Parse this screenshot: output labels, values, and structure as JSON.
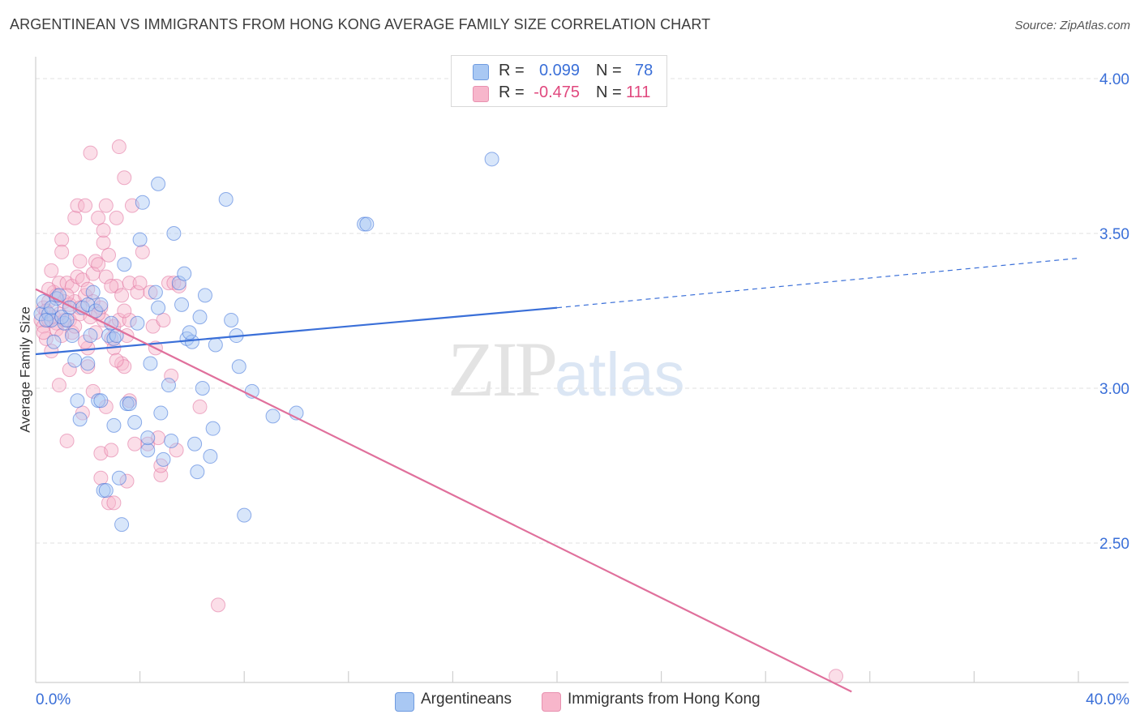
{
  "header": {
    "title": "ARGENTINEAN VS IMMIGRANTS FROM HONG KONG AVERAGE FAMILY SIZE CORRELATION CHART",
    "source": "Source: ZipAtlas.com"
  },
  "watermark": {
    "zip": "ZIP",
    "atlas": "atlas"
  },
  "stats": [
    {
      "r_label": "R =",
      "r_value": "0.099",
      "n_label": "N =",
      "n_value": "78",
      "color": "#a9c8f3"
    },
    {
      "r_label": "R =",
      "r_value": "-0.475",
      "n_label": "N =",
      "n_value": "111",
      "color": "#f7b6cb"
    }
  ],
  "legend": [
    {
      "label": "Argentineans",
      "color": "#a9c8f3"
    },
    {
      "label": "Immigrants from Hong Kong",
      "color": "#f7b6cb"
    }
  ],
  "chart_data": {
    "type": "scatter",
    "title": "ARGENTINEAN VS IMMIGRANTS FROM HONG KONG AVERAGE FAMILY SIZE CORRELATION CHART",
    "xlabel": "",
    "ylabel": "Average Family Size",
    "xlim": [
      0,
      40
    ],
    "ylim": [
      2.0,
      4.08
    ],
    "x_tick_labels": [
      "0.0%",
      "40.0%"
    ],
    "y_ticks": [
      2.5,
      3.0,
      3.5,
      4.0
    ],
    "y_tick_labels": [
      "2.50",
      "3.00",
      "3.50",
      "4.00"
    ],
    "grid": "horizontal dashed",
    "legend_position": "bottom",
    "series": [
      {
        "name": "Argentineans",
        "color": "#3a6fd8",
        "fill": "#a9c8f3",
        "trend": {
          "x": [
            0,
            20,
            40
          ],
          "y": [
            3.11,
            3.26,
            3.42
          ],
          "solid_until": 20
        },
        "points": [
          [
            0.2,
            3.24
          ],
          [
            0.3,
            3.28
          ],
          [
            0.5,
            3.24
          ],
          [
            0.6,
            3.22
          ],
          [
            0.7,
            3.15
          ],
          [
            0.8,
            3.29
          ],
          [
            0.9,
            3.3
          ],
          [
            1.1,
            3.21
          ],
          [
            1.3,
            3.26
          ],
          [
            1.4,
            3.17
          ],
          [
            1.5,
            3.09
          ],
          [
            1.6,
            2.96
          ],
          [
            1.7,
            2.9
          ],
          [
            1.8,
            3.26
          ],
          [
            2.0,
            3.08
          ],
          [
            2.0,
            3.27
          ],
          [
            2.2,
            3.31
          ],
          [
            2.3,
            3.25
          ],
          [
            2.4,
            2.96
          ],
          [
            2.5,
            3.27
          ],
          [
            2.5,
            2.96
          ],
          [
            2.6,
            2.67
          ],
          [
            2.8,
            3.17
          ],
          [
            2.9,
            3.21
          ],
          [
            3.0,
            3.16
          ],
          [
            3.0,
            2.88
          ],
          [
            3.2,
            2.71
          ],
          [
            3.3,
            2.56
          ],
          [
            3.4,
            3.4
          ],
          [
            3.5,
            2.95
          ],
          [
            3.6,
            2.95
          ],
          [
            3.8,
            2.89
          ],
          [
            3.9,
            3.21
          ],
          [
            4.0,
            3.48
          ],
          [
            4.1,
            3.6
          ],
          [
            4.3,
            2.8
          ],
          [
            4.3,
            2.84
          ],
          [
            4.4,
            3.08
          ],
          [
            4.6,
            3.31
          ],
          [
            4.7,
            3.26
          ],
          [
            4.7,
            3.66
          ],
          [
            4.8,
            2.92
          ],
          [
            4.9,
            2.77
          ],
          [
            5.1,
            3.01
          ],
          [
            5.2,
            2.83
          ],
          [
            5.3,
            3.5
          ],
          [
            5.5,
            3.34
          ],
          [
            5.6,
            3.27
          ],
          [
            5.7,
            3.37
          ],
          [
            5.8,
            3.16
          ],
          [
            6.0,
            3.15
          ],
          [
            6.1,
            2.82
          ],
          [
            6.2,
            2.73
          ],
          [
            6.3,
            3.23
          ],
          [
            6.4,
            3.0
          ],
          [
            6.5,
            3.3
          ],
          [
            6.7,
            2.78
          ],
          [
            6.8,
            2.87
          ],
          [
            6.9,
            3.14
          ],
          [
            7.3,
            3.61
          ],
          [
            7.5,
            3.22
          ],
          [
            7.7,
            3.17
          ],
          [
            7.8,
            3.07
          ],
          [
            8.0,
            2.59
          ],
          [
            8.3,
            2.99
          ],
          [
            9.1,
            2.91
          ],
          [
            10.0,
            2.92
          ],
          [
            12.6,
            3.53
          ],
          [
            12.7,
            3.53
          ],
          [
            17.5,
            3.74
          ],
          [
            0.4,
            3.22
          ],
          [
            1.0,
            3.23
          ],
          [
            2.7,
            2.67
          ],
          [
            3.1,
            3.17
          ],
          [
            1.2,
            3.22
          ],
          [
            2.1,
            3.17
          ],
          [
            5.9,
            3.18
          ],
          [
            0.6,
            3.26
          ]
        ]
      },
      {
        "name": "Immigrants from Hong Kong",
        "color": "#e0709c",
        "fill": "#f7b6cb",
        "trend": {
          "x": [
            0,
            31.3
          ],
          "y": [
            3.32,
            2.02
          ]
        },
        "points": [
          [
            0.2,
            3.22
          ],
          [
            0.3,
            3.2
          ],
          [
            0.3,
            3.26
          ],
          [
            0.4,
            3.16
          ],
          [
            0.5,
            3.28
          ],
          [
            0.5,
            3.22
          ],
          [
            0.6,
            3.12
          ],
          [
            0.6,
            3.38
          ],
          [
            0.7,
            3.23
          ],
          [
            0.7,
            3.31
          ],
          [
            0.8,
            3.21
          ],
          [
            0.8,
            3.19
          ],
          [
            0.9,
            3.01
          ],
          [
            0.9,
            3.34
          ],
          [
            1.0,
            3.48
          ],
          [
            1.0,
            3.44
          ],
          [
            1.1,
            3.28
          ],
          [
            1.1,
            3.22
          ],
          [
            1.2,
            2.83
          ],
          [
            1.2,
            3.34
          ],
          [
            1.3,
            3.22
          ],
          [
            1.3,
            3.27
          ],
          [
            1.4,
            3.18
          ],
          [
            1.4,
            3.33
          ],
          [
            1.5,
            3.55
          ],
          [
            1.5,
            3.28
          ],
          [
            1.6,
            3.59
          ],
          [
            1.6,
            3.36
          ],
          [
            1.7,
            3.24
          ],
          [
            1.7,
            3.41
          ],
          [
            1.8,
            3.35
          ],
          [
            1.8,
            2.92
          ],
          [
            1.9,
            3.3
          ],
          [
            1.9,
            3.59
          ],
          [
            2.0,
            3.07
          ],
          [
            2.0,
            3.13
          ],
          [
            2.1,
            3.23
          ],
          [
            2.1,
            3.76
          ],
          [
            2.2,
            3.37
          ],
          [
            2.2,
            2.99
          ],
          [
            2.3,
            3.41
          ],
          [
            2.3,
            3.18
          ],
          [
            2.4,
            3.4
          ],
          [
            2.4,
            3.55
          ],
          [
            2.5,
            3.26
          ],
          [
            2.5,
            2.71
          ],
          [
            2.5,
            2.79
          ],
          [
            2.6,
            3.47
          ],
          [
            2.6,
            3.51
          ],
          [
            2.7,
            3.36
          ],
          [
            2.7,
            2.94
          ],
          [
            2.7,
            3.59
          ],
          [
            2.8,
            3.43
          ],
          [
            2.8,
            2.63
          ],
          [
            2.9,
            3.16
          ],
          [
            2.9,
            2.8
          ],
          [
            3.0,
            3.2
          ],
          [
            3.0,
            3.13
          ],
          [
            3.0,
            2.63
          ],
          [
            3.1,
            3.55
          ],
          [
            3.1,
            3.33
          ],
          [
            3.2,
            3.78
          ],
          [
            3.2,
            3.22
          ],
          [
            3.3,
            3.08
          ],
          [
            3.3,
            3.3
          ],
          [
            3.4,
            3.68
          ],
          [
            3.4,
            3.07
          ],
          [
            3.5,
            3.17
          ],
          [
            3.5,
            2.7
          ],
          [
            3.6,
            3.34
          ],
          [
            3.6,
            2.96
          ],
          [
            3.7,
            3.59
          ],
          [
            3.8,
            2.82
          ],
          [
            3.9,
            3.31
          ],
          [
            4.0,
            3.34
          ],
          [
            4.1,
            3.44
          ],
          [
            4.3,
            2.82
          ],
          [
            4.4,
            3.31
          ],
          [
            4.5,
            3.2
          ],
          [
            4.6,
            3.13
          ],
          [
            4.7,
            2.84
          ],
          [
            4.8,
            2.72
          ],
          [
            4.8,
            2.75
          ],
          [
            4.9,
            3.22
          ],
          [
            5.1,
            3.34
          ],
          [
            5.2,
            3.04
          ],
          [
            5.3,
            3.34
          ],
          [
            5.4,
            2.8
          ],
          [
            5.5,
            3.33
          ],
          [
            6.3,
            2.94
          ],
          [
            7.0,
            2.3
          ],
          [
            30.7,
            2.07
          ],
          [
            0.4,
            3.25
          ],
          [
            0.8,
            3.3
          ],
          [
            1.0,
            3.17
          ],
          [
            1.3,
            3.06
          ],
          [
            1.9,
            3.15
          ],
          [
            2.2,
            3.28
          ],
          [
            2.6,
            3.22
          ],
          [
            3.1,
            3.09
          ],
          [
            3.6,
            3.22
          ],
          [
            1.5,
            3.2
          ],
          [
            0.9,
            3.24
          ],
          [
            2.9,
            3.33
          ],
          [
            1.2,
            3.3
          ],
          [
            0.5,
            3.32
          ],
          [
            2.4,
            3.24
          ],
          [
            3.4,
            3.25
          ],
          [
            0.3,
            3.18
          ],
          [
            1.7,
            3.26
          ],
          [
            2.0,
            3.32
          ]
        ]
      }
    ]
  }
}
